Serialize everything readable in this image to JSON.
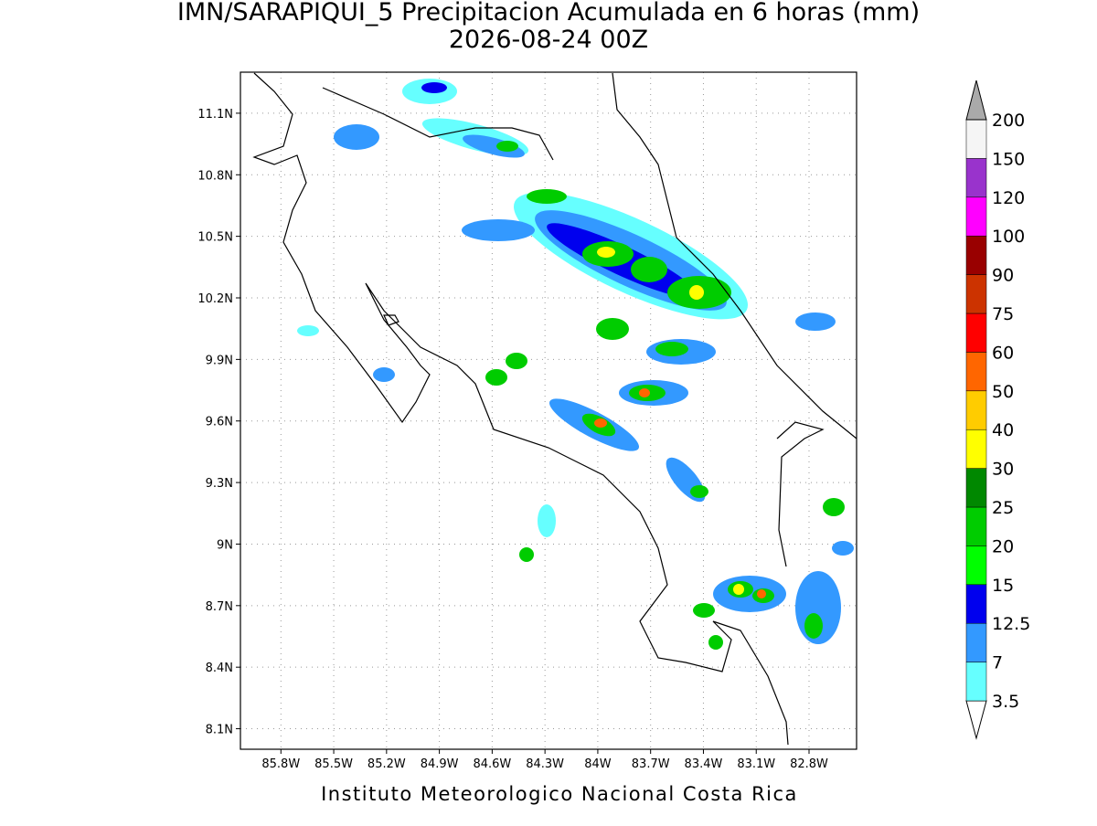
{
  "title": [
    "IMN/SARAPIQUI_5 Precipitacion Acumulada en 6 horas (mm)",
    "2026-08-24 00Z"
  ],
  "footer": "Instituto Meteorologico Nacional Costa Rica",
  "map": {
    "lonlim": [
      -86.03,
      -82.53
    ],
    "latlim": [
      8.0,
      11.3
    ],
    "lon_ticks": [
      {
        "value": -85.8,
        "label": "85.8W"
      },
      {
        "value": -85.5,
        "label": "85.5W"
      },
      {
        "value": -85.2,
        "label": "85.2W"
      },
      {
        "value": -84.9,
        "label": "84.9W"
      },
      {
        "value": -84.6,
        "label": "84.6W"
      },
      {
        "value": -84.3,
        "label": "84.3W"
      },
      {
        "value": -84.0,
        "label": "84W"
      },
      {
        "value": -83.7,
        "label": "83.7W"
      },
      {
        "value": -83.4,
        "label": "83.4W"
      },
      {
        "value": -83.1,
        "label": "83.1W"
      },
      {
        "value": -82.8,
        "label": "82.8W"
      }
    ],
    "lat_ticks": [
      {
        "value": 8.1,
        "label": "8.1N"
      },
      {
        "value": 8.4,
        "label": "8.4N"
      },
      {
        "value": 8.7,
        "label": "8.7N"
      },
      {
        "value": 9.0,
        "label": "9N"
      },
      {
        "value": 9.3,
        "label": "9.3N"
      },
      {
        "value": 9.6,
        "label": "9.6N"
      },
      {
        "value": 9.9,
        "label": "9.9N"
      },
      {
        "value": 10.2,
        "label": "10.2N"
      },
      {
        "value": 10.5,
        "label": "10.5N"
      },
      {
        "value": 10.8,
        "label": "10.8N"
      },
      {
        "value": 11.1,
        "label": "11.1N"
      }
    ]
  },
  "colorbar": {
    "levels": [
      3.5,
      7,
      12.5,
      15,
      20,
      25,
      30,
      40,
      50,
      60,
      75,
      90,
      100,
      120,
      150,
      200
    ],
    "colors": [
      "#ffffff",
      "#66ffff",
      "#3399ff",
      "#0000ee",
      "#00ff00",
      "#00cc00",
      "#008800",
      "#ffff00",
      "#ffcc00",
      "#ff6600",
      "#ff0000",
      "#cc3300",
      "#990000",
      "#ff00ff",
      "#9933cc",
      "#f5f5f5",
      "#aaaaaa"
    ]
  }
}
